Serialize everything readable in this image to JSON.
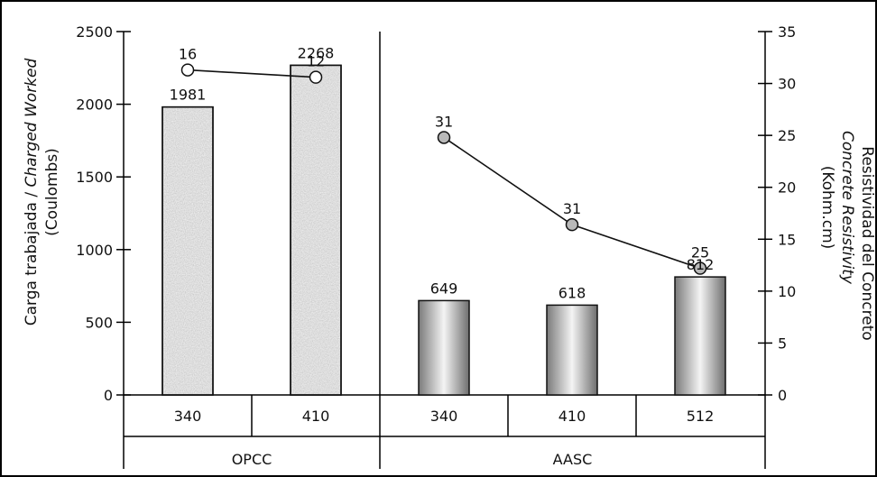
{
  "chart_data": {
    "type": "bar",
    "left_axis": {
      "title_part1": "Carga trabajada / ",
      "title_part2_italic": "Charged Worked",
      "title_line2": "(Coulombs)",
      "ylim": [
        0,
        2500
      ],
      "ticks": [
        0,
        500,
        1000,
        1500,
        2000,
        2500
      ]
    },
    "right_axis": {
      "title_line1": "Resistividad del Concreto",
      "title_line2_italic": "Concrete Resistivity",
      "title_line3": "(Kohm.cm)",
      "ylim": [
        0,
        35
      ],
      "ticks": [
        0,
        5,
        10,
        15,
        20,
        25,
        30,
        35
      ]
    },
    "groups": [
      {
        "name": "OPCC",
        "categories": [
          "340",
          "410"
        ],
        "charge_values": [
          1981,
          2268
        ],
        "resistivity_values": [
          16,
          12
        ],
        "bar_style": "speckled-gray",
        "marker_fill": "#ffffff"
      },
      {
        "name": "AASC",
        "categories": [
          "340",
          "410",
          "512"
        ],
        "charge_values": [
          649,
          618,
          812
        ],
        "resistivity_values": [
          31,
          31,
          25
        ],
        "bar_style": "gradient-gray",
        "marker_fill": "#b9b9b9"
      }
    ],
    "resistivity_marker_values": [
      31.3,
      30.6,
      24.8,
      16.4,
      12.2
    ],
    "grid": false
  }
}
